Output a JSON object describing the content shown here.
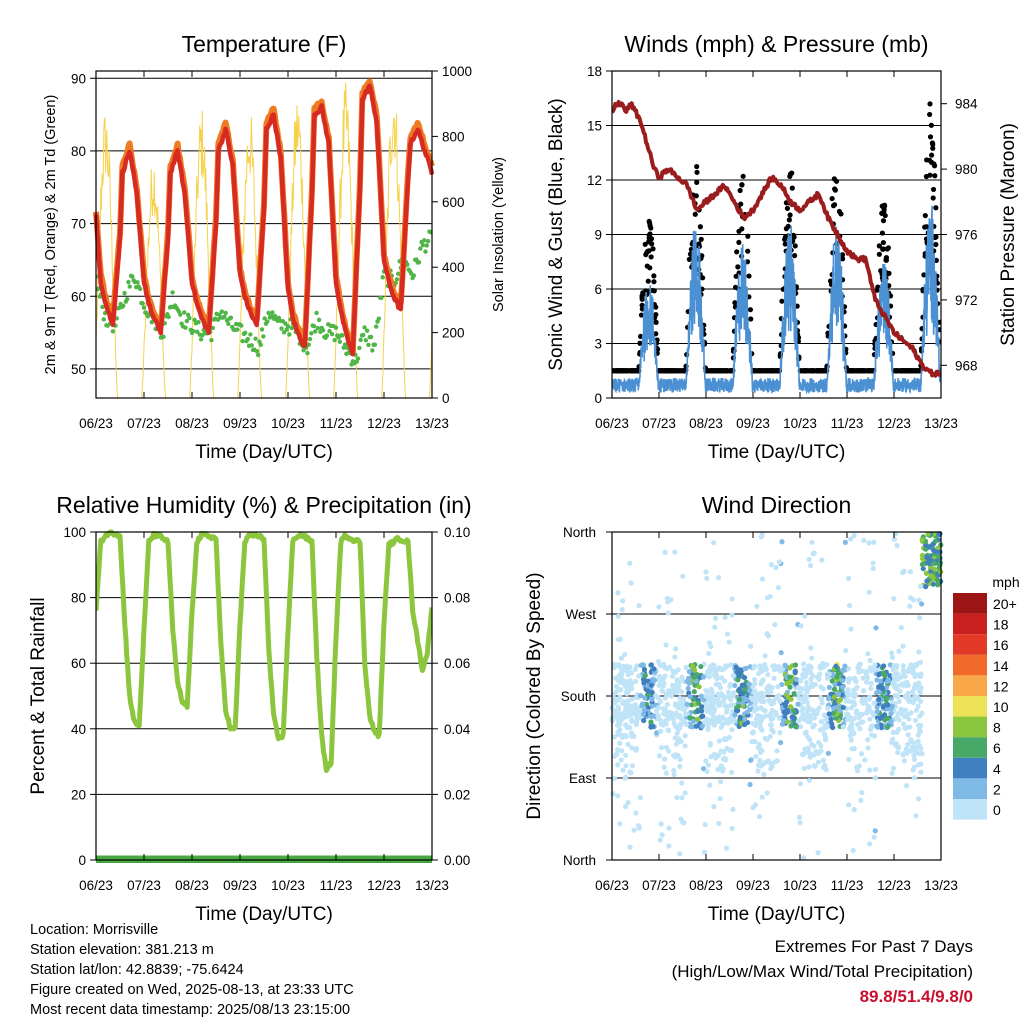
{
  "colors": {
    "temp2m": "#d62a22",
    "temp9m": "#f07a22",
    "dewpoint": "#4fb547",
    "solar": "#f6d24a",
    "wind": "#4a90d2",
    "gust": "#000000",
    "pressure": "#9b1c1c",
    "rh": "#8cc63f",
    "precip": "#47a842"
  },
  "speed_legend": {
    "title": "mph",
    "levels": [
      {
        "label": "20+",
        "color": "#9b1515"
      },
      {
        "label": "18",
        "color": "#c8201e"
      },
      {
        "label": "16",
        "color": "#e23a26"
      },
      {
        "label": "14",
        "color": "#f26a2a"
      },
      {
        "label": "12",
        "color": "#f8a848"
      },
      {
        "label": "10",
        "color": "#ede158"
      },
      {
        "label": "8",
        "color": "#8cc63f"
      },
      {
        "label": "6",
        "color": "#48a868"
      },
      {
        "label": "4",
        "color": "#3f7fc0"
      },
      {
        "label": "2",
        "color": "#7fb9e6"
      },
      {
        "label": "0",
        "color": "#bfe3f7"
      }
    ]
  },
  "chart_data": [
    {
      "type": "line",
      "title": "Temperature (F)",
      "xlabel": "Time (Day/UTC)",
      "ylabel": "2m & 9m T (Red, Orange) & 2m Td (Green)",
      "y2label": "Solar Insolation (Yellow)",
      "x_ticks": [
        "06/23",
        "07/23",
        "08/23",
        "09/23",
        "10/23",
        "11/23",
        "12/23",
        "13/23"
      ],
      "y_ticks": [
        "50",
        "60",
        "70",
        "80",
        "90"
      ],
      "y2_ticks": [
        "0",
        "200",
        "400",
        "600",
        "800",
        "1000"
      ],
      "xlim": [
        0,
        7
      ],
      "ylim": [
        46,
        91
      ],
      "y2lim": [
        0,
        1000
      ],
      "grid": true,
      "series": [
        {
          "kind": "temp",
          "x": [
            0,
            0.1,
            0.2,
            0.35,
            0.5,
            0.55,
            0.7,
            0.85,
            1,
            1.1,
            1.2,
            1.35,
            1.5,
            1.55,
            1.7,
            1.85,
            2,
            2.1,
            2.2,
            2.35,
            2.5,
            2.55,
            2.7,
            2.85,
            3,
            3.1,
            3.2,
            3.35,
            3.5,
            3.55,
            3.7,
            3.85,
            4,
            4.1,
            4.2,
            4.35,
            4.5,
            4.55,
            4.7,
            4.85,
            5,
            5.1,
            5.2,
            5.35,
            5.5,
            5.55,
            5.7,
            5.85,
            6,
            6.1,
            6.2,
            6.35,
            6.5,
            6.55,
            6.7,
            6.85,
            7
          ],
          "values": [
            71,
            62,
            59,
            56,
            68,
            77,
            80,
            74,
            62,
            59,
            57,
            55,
            68,
            77,
            80,
            74,
            62,
            59,
            57,
            55,
            70,
            80,
            83,
            78,
            63,
            60,
            58,
            56,
            72,
            83,
            85,
            79,
            61,
            57,
            55,
            53,
            74,
            85,
            86,
            81,
            62,
            58,
            55,
            52,
            75,
            87,
            89,
            84,
            65,
            62,
            60,
            58,
            76,
            81,
            83,
            80,
            77
          ]
        },
        {
          "kind": "dew",
          "x": [
            0,
            0.2,
            0.4,
            0.6,
            0.8,
            1,
            1.2,
            1.4,
            1.6,
            1.8,
            2,
            2.2,
            2.4,
            2.6,
            2.8,
            3,
            3.2,
            3.4,
            3.6,
            3.8,
            4,
            4.2,
            4.4,
            4.6,
            4.8,
            5,
            5.2,
            5.4,
            5.6,
            5.8,
            6,
            6.2,
            6.4,
            6.6,
            6.8,
            7
          ],
          "values": [
            62,
            57,
            56,
            60,
            63,
            59,
            57,
            55,
            60,
            57,
            56,
            55,
            55,
            58,
            56,
            55,
            54,
            53,
            58,
            56,
            56,
            55,
            53,
            57,
            55,
            55,
            53,
            51,
            55,
            53,
            63,
            62,
            65,
            63,
            67,
            68
          ]
        },
        {
          "kind": "solar",
          "peaks": [
            780,
            660,
            780,
            780,
            820,
            840,
            860,
            1000
          ]
        }
      ]
    },
    {
      "type": "scatter",
      "title": "Winds (mph) & Pressure (mb)",
      "xlabel": "Time (Day/UTC)",
      "ylabel": "Sonic Wind & Gust (Blue, Black)",
      "y2label": "Station Pressure (Maroon)",
      "x_ticks": [
        "06/23",
        "07/23",
        "08/23",
        "09/23",
        "10/23",
        "11/23",
        "12/23",
        "13/23"
      ],
      "y_ticks": [
        "0",
        "3",
        "6",
        "9",
        "12",
        "15",
        "18"
      ],
      "y2_ticks": [
        "968",
        "972",
        "976",
        "980",
        "984"
      ],
      "xlim": [
        0,
        7
      ],
      "ylim": [
        0,
        18
      ],
      "y2lim": [
        966,
        986
      ],
      "grid": true,
      "wind_daily_peak": [
        2,
        6,
        9,
        8,
        9,
        9,
        7,
        10
      ],
      "gust_daily_peak": [
        3,
        9.5,
        12,
        12,
        12,
        13,
        10,
        15
      ],
      "pressure": {
        "x": [
          0,
          0.1,
          0.2,
          0.3,
          0.4,
          0.5,
          0.6,
          0.7,
          0.8,
          0.9,
          1.0,
          1.2,
          1.4,
          1.6,
          1.8,
          2.0,
          2.2,
          2.4,
          2.6,
          2.8,
          3.0,
          3.2,
          3.4,
          3.6,
          3.8,
          4.0,
          4.2,
          4.4,
          4.6,
          4.8,
          5.0,
          5.2,
          5.4,
          5.6,
          5.8,
          6.0,
          6.2,
          6.4,
          6.6,
          6.8,
          7.0
        ],
        "values": [
          983.5,
          984,
          984,
          983.5,
          984,
          983.5,
          983,
          982,
          981,
          980,
          979.5,
          980,
          979.5,
          979,
          977.5,
          978,
          978.5,
          979,
          978,
          977,
          977.5,
          978.5,
          979.5,
          979,
          978,
          977.5,
          978,
          978.5,
          977,
          976,
          975,
          974.5,
          974.5,
          972,
          971,
          970,
          969.5,
          969,
          968,
          967.5,
          967.5
        ]
      }
    },
    {
      "type": "line",
      "title": "Relative Humidity (%) & Precipitation (in)",
      "xlabel": "Time (Day/UTC)",
      "ylabel": "Percent & Total Rainfall",
      "x_ticks": [
        "06/23",
        "07/23",
        "08/23",
        "09/23",
        "10/23",
        "11/23",
        "12/23",
        "13/23"
      ],
      "y_ticks": [
        "0",
        "20",
        "40",
        "60",
        "80",
        "100"
      ],
      "y2_ticks": [
        "0.00",
        "0.02",
        "0.04",
        "0.06",
        "0.08",
        "0.10"
      ],
      "xlim": [
        0,
        7
      ],
      "ylim": [
        0,
        100
      ],
      "y2lim": [
        0,
        0.1
      ],
      "grid": true,
      "series": [
        {
          "kind": "rh",
          "x": [
            0,
            0.1,
            0.2,
            0.3,
            0.5,
            0.6,
            0.7,
            0.8,
            0.9,
            1.0,
            1.1,
            1.2,
            1.3,
            1.5,
            1.6,
            1.7,
            1.8,
            1.9,
            2.0,
            2.1,
            2.2,
            2.3,
            2.5,
            2.6,
            2.7,
            2.8,
            2.9,
            3.0,
            3.1,
            3.2,
            3.3,
            3.5,
            3.6,
            3.7,
            3.8,
            3.9,
            4.0,
            4.1,
            4.2,
            4.3,
            4.5,
            4.6,
            4.7,
            4.8,
            4.9,
            5.0,
            5.1,
            5.2,
            5.3,
            5.5,
            5.6,
            5.7,
            5.8,
            5.9,
            6.0,
            6.1,
            6.2,
            6.3,
            6.5,
            6.6,
            6.7,
            6.8,
            6.9,
            7.0
          ],
          "values": [
            76,
            97,
            99,
            100,
            99,
            72,
            50,
            42,
            41,
            70,
            97,
            99,
            99,
            97,
            70,
            54,
            48,
            47,
            75,
            97,
            99,
            99,
            98,
            66,
            46,
            40,
            40,
            72,
            97,
            99,
            99,
            98,
            64,
            44,
            37,
            38,
            70,
            97,
            99,
            99,
            97,
            62,
            38,
            27,
            30,
            68,
            97,
            99,
            98,
            97,
            60,
            44,
            39,
            38,
            72,
            96,
            97,
            98,
            97,
            76,
            67,
            58,
            63,
            77
          ]
        },
        {
          "kind": "precip",
          "values": [
            0,
            0
          ]
        }
      ]
    },
    {
      "type": "scatter",
      "title": "Wind Direction",
      "xlabel": "Time (Day/UTC)",
      "ylabel": "Direction (Colored By Speed)",
      "x_ticks": [
        "06/23",
        "07/23",
        "08/23",
        "09/23",
        "10/23",
        "11/23",
        "12/23",
        "13/23"
      ],
      "y_ticks": [
        "North",
        "East",
        "South",
        "West",
        "North"
      ],
      "xlim": [
        0,
        7
      ],
      "ylim": [
        0,
        360
      ],
      "grid": true
    }
  ],
  "info": {
    "location": "Location: Morrisville",
    "elevation": "Station elevation: 381.213 m",
    "latlon": "Station lat/lon: 42.8839; -75.6424",
    "created": "Figure created on Wed, 2025-08-13, at 23:33 UTC",
    "recent": "Most recent data timestamp: 2025/08/13 23:15:00"
  },
  "extremes": {
    "heading": "Extremes For Past 7 Days",
    "subheading": "(High/Low/Max Wind/Total Precipitation)",
    "values": "89.8/51.4/9.8/0"
  }
}
